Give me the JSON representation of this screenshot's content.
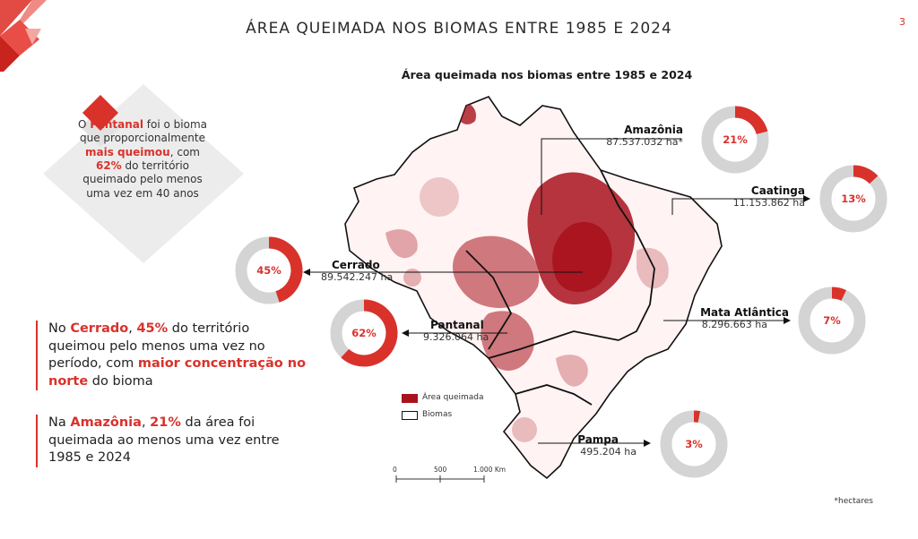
{
  "page": {
    "title": "ÁREA QUEIMADA NOS BIOMAS ENTRE 1985 E 2024",
    "number": "3"
  },
  "callout": {
    "pre": "O ",
    "biome": "Pantanal",
    "mid1": " foi o bioma que proporcionalmente ",
    "emph": "mais queimou",
    "mid2": ", com ",
    "pct": "62%",
    "post": " do território queimado pelo menos uma vez em 40 anos"
  },
  "notes": {
    "cerrado": {
      "pre": "No ",
      "biome": "Cerrado",
      "sep": ", ",
      "pct": "45%",
      "mid": " do território queimou pelo menos uma vez no período, com ",
      "emph": "maior concentração no norte",
      "post": " do bioma"
    },
    "amazonia": {
      "pre": "Na ",
      "biome": "Amazônia",
      "sep": ", ",
      "pct": "21%",
      "post": " da área foi queimada ao menos uma vez entre 1985 e 2024"
    }
  },
  "chart_data": {
    "type": "pie",
    "title": "Área queimada nos biomas entre 1985 e 2024",
    "unit_note": "*hectares",
    "biomes": [
      {
        "name": "Amazônia",
        "area": "87.537.032 ha*",
        "percent": 21
      },
      {
        "name": "Caatinga",
        "area": "11.153.862 ha",
        "percent": 13
      },
      {
        "name": "Cerrado",
        "area": "89.542.247 ha",
        "percent": 45
      },
      {
        "name": "Mata Atlântica",
        "area": "8.296.663 ha",
        "percent": 7
      },
      {
        "name": "Pantanal",
        "area": "9.326.064 ha",
        "percent": 62
      },
      {
        "name": "Pampa",
        "area": "495.204 ha",
        "percent": 3
      }
    ],
    "legend": [
      "Área queimada",
      "Biomas"
    ],
    "scale": [
      "0",
      "500",
      "1.000 Km"
    ],
    "colors": {
      "burned": "#d9322b",
      "remaining": "#d4d4d4",
      "map_burned": "#a8121c"
    }
  }
}
